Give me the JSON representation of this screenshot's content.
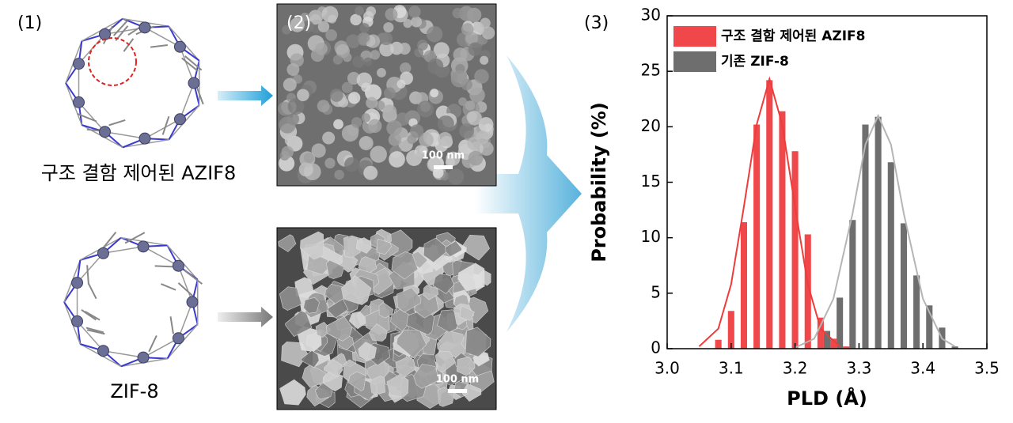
{
  "panels": {
    "label_1": "(1)",
    "label_2": "(2)",
    "label_3": "(3)",
    "structure_top": "구조 결함 제어된 AZIF8",
    "structure_bottom": "ZIF-8",
    "scale_top": "100 nm",
    "scale_bottom": "100 nm"
  },
  "chart_data": {
    "type": "histogram",
    "x_label": "PLD (Å)",
    "y_label": "Probability (%)",
    "xlim": [
      3.0,
      3.5
    ],
    "ylim": [
      0,
      30
    ],
    "xticks": [
      {
        "value": 3.0,
        "label": "3.0"
      },
      {
        "value": 3.1,
        "label": "3.1"
      },
      {
        "value": 3.2,
        "label": "3.2"
      },
      {
        "value": 3.3,
        "label": "3.3"
      },
      {
        "value": 3.4,
        "label": "3.4"
      },
      {
        "value": 3.5,
        "label": "3.5"
      }
    ],
    "yticks": [
      0,
      5,
      10,
      15,
      20,
      25,
      30
    ],
    "legend": "upper-left",
    "series": [
      {
        "name": "구조 결함 제어된 AZIF8",
        "color": "#f0484a",
        "fit_color": "#ee3b3b",
        "x": [
          3.08,
          3.1,
          3.12,
          3.14,
          3.16,
          3.18,
          3.2,
          3.22,
          3.24,
          3.26,
          3.28
        ],
        "values": [
          0.8,
          3.4,
          11.4,
          20.2,
          24.2,
          21.4,
          17.8,
          10.3,
          2.8,
          0.9,
          0.2
        ],
        "fit_x": [
          3.05,
          3.08,
          3.1,
          3.12,
          3.14,
          3.16,
          3.18,
          3.2,
          3.22,
          3.24,
          3.27
        ],
        "fit_values": [
          0.2,
          1.8,
          5.8,
          12.8,
          20.2,
          24.3,
          20.2,
          12.8,
          5.8,
          1.8,
          0.2
        ]
      },
      {
        "name": "기존 ZIF-8",
        "color": "#6e6e6e",
        "fit_color": "#b5b5b5",
        "x": [
          3.25,
          3.27,
          3.29,
          3.31,
          3.33,
          3.35,
          3.37,
          3.39,
          3.41,
          3.43,
          3.45
        ],
        "values": [
          1.6,
          4.6,
          11.6,
          20.2,
          20.9,
          16.8,
          11.3,
          6.6,
          3.9,
          1.9,
          0.2
        ],
        "fit_x": [
          3.2,
          3.23,
          3.26,
          3.29,
          3.31,
          3.33,
          3.35,
          3.37,
          3.4,
          3.43,
          3.45
        ],
        "fit_values": [
          0.1,
          0.9,
          4.5,
          12.2,
          18.4,
          21,
          18.4,
          12.2,
          4.5,
          0.9,
          0.2
        ]
      }
    ]
  }
}
